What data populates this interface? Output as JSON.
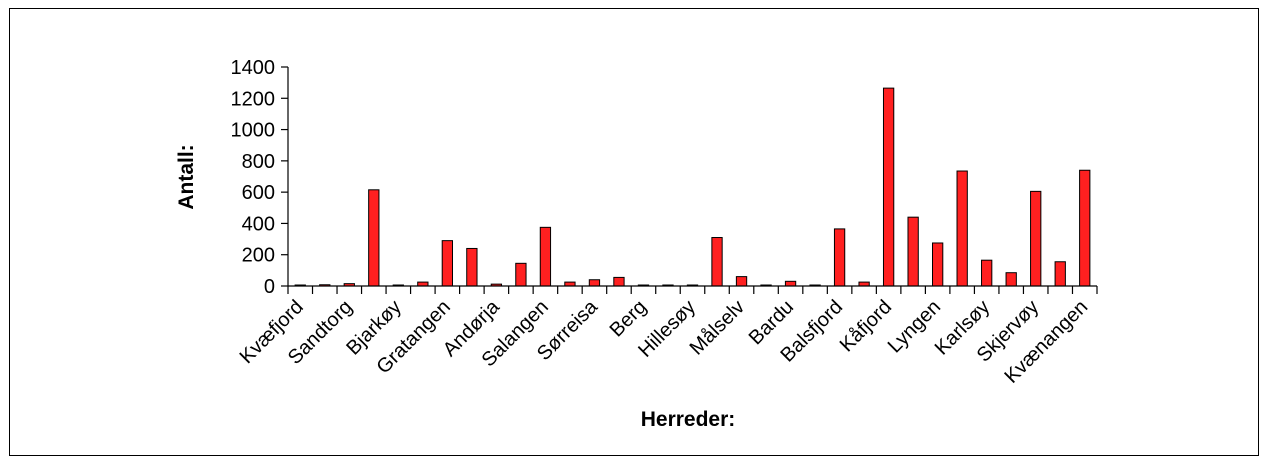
{
  "chart_data": {
    "type": "bar",
    "title": "",
    "xlabel": "Herreder:",
    "ylabel": "Antall:",
    "ylim": [
      0,
      1400
    ],
    "yticks": [
      0,
      200,
      400,
      600,
      800,
      1000,
      1200,
      1400
    ],
    "grid": false,
    "bar_color": "#ff2020",
    "categories": [
      "Kvæfjord",
      "",
      "Sandtorg",
      "",
      "Bjarkøy",
      "",
      "Gratangen",
      "",
      "Andørja",
      "",
      "Salangen",
      "",
      "Sørreisa",
      "",
      "Berg",
      "",
      "Hillesøy",
      "",
      "Målselv",
      "",
      "Bardu",
      "",
      "Balsfjord",
      "",
      "Kåfjord",
      "",
      "Lyngen",
      "",
      "Karlsøy",
      "",
      "Skjervøy",
      "",
      "Kvænangen"
    ],
    "values": [
      3,
      8,
      15,
      615,
      0,
      25,
      290,
      240,
      12,
      145,
      375,
      25,
      40,
      55,
      0,
      3,
      5,
      310,
      60,
      5,
      30,
      0,
      365,
      25,
      1265,
      440,
      275,
      735,
      165,
      85,
      605,
      155,
      740
    ]
  }
}
